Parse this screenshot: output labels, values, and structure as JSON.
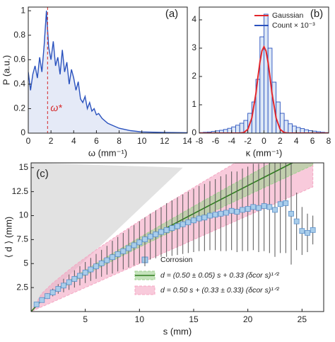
{
  "chart_data": [
    {
      "type": "line",
      "label": "(a)",
      "xlabel": "ω (mm⁻¹)",
      "ylabel": "P (a.u.)",
      "color": "#2a52be",
      "xlim": [
        0,
        14
      ],
      "ylim": [
        0,
        1.03
      ],
      "xticks": [
        0,
        2,
        4,
        6,
        8,
        10,
        12,
        14
      ],
      "yticks": [
        0,
        0.2,
        0.4,
        0.6,
        0.8,
        1
      ],
      "x": [
        0,
        0.2,
        0.4,
        0.6,
        0.8,
        1.0,
        1.2,
        1.4,
        1.6,
        1.8,
        2.0,
        2.2,
        2.4,
        2.6,
        2.8,
        3.0,
        3.2,
        3.4,
        3.6,
        3.8,
        4.0,
        4.2,
        4.4,
        4.6,
        4.8,
        5.0,
        5.2,
        5.4,
        5.6,
        5.8,
        6.0,
        6.2,
        6.5,
        7.0,
        7.5,
        8,
        9,
        10,
        12,
        14
      ],
      "values": [
        0.5,
        0.35,
        0.48,
        0.55,
        0.45,
        0.62,
        0.5,
        0.72,
        1.0,
        0.7,
        0.6,
        0.75,
        0.55,
        0.62,
        0.48,
        0.68,
        0.5,
        0.58,
        0.4,
        0.52,
        0.45,
        0.35,
        0.42,
        0.28,
        0.25,
        0.3,
        0.2,
        0.25,
        0.18,
        0.2,
        0.15,
        0.16,
        0.12,
        0.08,
        0.06,
        0.04,
        0.02,
        0.01,
        0.005,
        0.003
      ],
      "marker": {
        "value": 1.7,
        "label": "ω*",
        "color": "#d62728"
      }
    },
    {
      "type": "histogram",
      "label": "(b)",
      "xlabel": "κ (mm⁻¹)",
      "xlim": [
        -8,
        8
      ],
      "ylim": [
        0,
        4.45
      ],
      "xticks": [
        -8,
        -6,
        -4,
        -2,
        0,
        2,
        4,
        6,
        8
      ],
      "yticks": [
        0,
        1,
        2,
        3,
        4
      ],
      "legend": "upper right",
      "bins": [
        -8,
        -7.5,
        -7,
        -6.5,
        -6,
        -5.5,
        -5,
        -4.5,
        -4,
        -3.5,
        -3,
        -2.5,
        -2,
        -1.5,
        -1,
        -0.5,
        0,
        0.5,
        1,
        1.5,
        2,
        2.5,
        3,
        3.5,
        4,
        4.5,
        5,
        5.5,
        6,
        6.5,
        7,
        7.5,
        8
      ],
      "series": [
        {
          "name": "Gaussian",
          "color": "#e3262b",
          "x": [
            -8,
            -3,
            -2.5,
            -2,
            -1.5,
            -1,
            -0.75,
            -0.5,
            -0.25,
            0,
            0.25,
            0.5,
            0.75,
            1,
            1.5,
            2,
            2.5,
            3,
            8
          ],
          "values": [
            0,
            0,
            0.02,
            0.13,
            0.53,
            1.4,
            1.97,
            2.51,
            2.9,
            3.05,
            2.9,
            2.51,
            1.97,
            1.4,
            0.53,
            0.13,
            0.02,
            0,
            0
          ]
        },
        {
          "name": "Count × 10⁻³",
          "color": "#2a52be",
          "values": [
            0.02,
            0.03,
            0.04,
            0.06,
            0.08,
            0.1,
            0.13,
            0.17,
            0.22,
            0.28,
            0.35,
            0.45,
            0.7,
            1.1,
            1.9,
            3.4,
            4.2,
            3.0,
            1.8,
            1.1,
            0.7,
            0.45,
            0.33,
            0.25,
            0.2,
            0.16,
            0.12,
            0.09,
            0.07,
            0.05,
            0.03,
            0.02
          ]
        }
      ]
    },
    {
      "type": "scatter",
      "label": "(c)",
      "xlabel": "s (mm)",
      "ylabel": "⟨ d ⟩ (mm)",
      "xlim": [
        0,
        27
      ],
      "ylim": [
        0,
        15.5
      ],
      "xticks": [
        5,
        10,
        15,
        20,
        25
      ],
      "yticks": [
        2.5,
        5,
        7.5,
        10,
        12.5,
        15
      ],
      "region": {
        "color": "#e2e2e2",
        "x": [
          0,
          14
        ],
        "values": [
          0,
          15
        ]
      },
      "curve_x": [
        0,
        1,
        2,
        4,
        6,
        8,
        10,
        12,
        14,
        16,
        18,
        20,
        22,
        24,
        26
      ],
      "fit": {
        "color": "#2f7d1e",
        "values": [
          0,
          1.2,
          1.99,
          3.4,
          4.71,
          5.98,
          7.21,
          8.42,
          9.62,
          10.8,
          11.97,
          13.13,
          14.28,
          15.43,
          16.57
        ]
      },
      "bands": [
        {
          "name": "d = (0.50 ± 0.05) s + 0.33 (δcor s)¹ᐟ²",
          "color": "#9fd18f",
          "lower": [
            0,
            1.15,
            1.89,
            3.2,
            4.41,
            5.58,
            6.71,
            7.82,
            8.92,
            10.0,
            11.07,
            12.13,
            13.18,
            14.23,
            15.27
          ],
          "upper": [
            0,
            1.25,
            2.09,
            3.6,
            5.01,
            6.38,
            7.71,
            9.02,
            10.32,
            11.6,
            12.87,
            14.13,
            15.38,
            16.63,
            17.87
          ]
        },
        {
          "name": "d = 0.50 s + (0.33 ± 0.33) (δcor s)¹ᐟ²",
          "color": "#f4a7c3",
          "lower": [
            0,
            0.5,
            1,
            2,
            3,
            4,
            5,
            6,
            7,
            8,
            9,
            10,
            11,
            12,
            13
          ],
          "upper": [
            0,
            1.9,
            2.98,
            4.8,
            6.43,
            7.96,
            9.43,
            10.85,
            12.24,
            13.6,
            14.94,
            16.26,
            17.57,
            18.86,
            20.14
          ]
        }
      ],
      "series": [
        {
          "name": "Corrosion",
          "color": "#a9cdea",
          "x": [
            0.5,
            1,
            1.5,
            2,
            2.5,
            3,
            3.5,
            4,
            4.5,
            5,
            5.5,
            6,
            6.5,
            7,
            7.5,
            8,
            8.5,
            9,
            9.5,
            10,
            10.5,
            11,
            11.5,
            12,
            12.5,
            13,
            13.5,
            14,
            14.5,
            15,
            15.5,
            16,
            16.5,
            17,
            17.5,
            18,
            18.5,
            19,
            19.5,
            20,
            20.5,
            21,
            21.5,
            22,
            22.5,
            23,
            23.5,
            24,
            24.5,
            25,
            25.5,
            26
          ],
          "values": [
            0.74,
            1.2,
            1.61,
            1.99,
            2.36,
            2.71,
            3.06,
            3.4,
            3.73,
            4.07,
            4.39,
            4.71,
            5.03,
            5.35,
            5.67,
            5.98,
            6.29,
            6.6,
            6.91,
            7.21,
            7.52,
            7.82,
            8.05,
            8.3,
            8.5,
            8.7,
            8.9,
            9.1,
            9.3,
            9.5,
            9.7,
            9.8,
            10.0,
            10.1,
            10.2,
            10.3,
            10.5,
            10.4,
            10.6,
            10.7,
            10.9,
            10.8,
            11.0,
            10.9,
            10.6,
            11.2,
            11.3,
            10.2,
            9.4,
            8.4,
            8.2,
            8.5
          ],
          "errors": [
            0.1,
            0.2,
            0.3,
            0.4,
            0.5,
            0.7,
            0.8,
            0.9,
            1.0,
            1.1,
            1.2,
            1.3,
            1.4,
            1.5,
            1.7,
            1.8,
            1.9,
            2.0,
            2.1,
            2.2,
            2.3,
            2.4,
            2.5,
            2.6,
            2.8,
            2.9,
            3.0,
            3.1,
            3.2,
            3.3,
            3.4,
            3.5,
            3.6,
            3.7,
            3.9,
            4.0,
            4.1,
            4.2,
            4.3,
            4.4,
            4.5,
            4.6,
            4.7,
            4.8,
            4.9,
            5.1,
            5.2,
            5.3,
            3.0,
            2.5,
            2.0,
            1.5
          ]
        }
      ]
    }
  ]
}
